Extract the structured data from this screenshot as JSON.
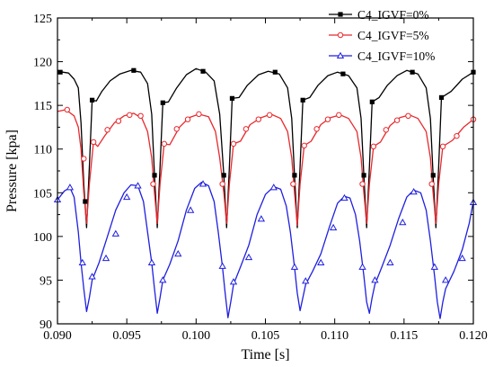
{
  "chart_data": {
    "type": "line",
    "xlabel": "Time [s]",
    "ylabel": "Pressure [kpa]",
    "xlim": [
      0.09,
      0.12
    ],
    "ylim": [
      90,
      125
    ],
    "x_ticks": [
      "0.090",
      "0.095",
      "0.100",
      "0.105",
      "0.110",
      "0.115",
      "0.120"
    ],
    "y_ticks": [
      "90",
      "95",
      "100",
      "105",
      "110",
      "115",
      "120",
      "125"
    ],
    "grid": false,
    "legend_position": "top-right",
    "series": [
      {
        "name": "C4_IGVF=0%",
        "color": "#000000",
        "marker": "square-filled",
        "points": [
          [
            0.09,
            118.9
          ],
          [
            0.0908,
            118.7
          ],
          [
            0.0912,
            118.0
          ],
          [
            0.0915,
            117.0
          ],
          [
            0.0917,
            113.0
          ],
          [
            0.0919,
            106.0
          ],
          [
            0.0921,
            101.0
          ],
          [
            0.0923,
            108.0
          ],
          [
            0.0925,
            115.6
          ],
          [
            0.0928,
            115.5
          ],
          [
            0.0932,
            116.6
          ],
          [
            0.0938,
            117.8
          ],
          [
            0.0945,
            118.6
          ],
          [
            0.0953,
            119.0
          ],
          [
            0.096,
            118.8
          ],
          [
            0.0965,
            117.5
          ],
          [
            0.0968,
            114.0
          ],
          [
            0.097,
            107.0
          ],
          [
            0.0972,
            101.0
          ],
          [
            0.0974,
            108.0
          ],
          [
            0.0976,
            115.3
          ],
          [
            0.098,
            115.4
          ],
          [
            0.0986,
            117.0
          ],
          [
            0.0993,
            118.5
          ],
          [
            0.1,
            119.2
          ],
          [
            0.1007,
            118.8
          ],
          [
            0.1013,
            117.8
          ],
          [
            0.1017,
            114.0
          ],
          [
            0.102,
            107.0
          ],
          [
            0.1022,
            101.0
          ],
          [
            0.1024,
            108.0
          ],
          [
            0.1026,
            115.8
          ],
          [
            0.1031,
            115.9
          ],
          [
            0.1037,
            117.3
          ],
          [
            0.1045,
            118.5
          ],
          [
            0.1052,
            118.9
          ],
          [
            0.106,
            118.6
          ],
          [
            0.1066,
            117.0
          ],
          [
            0.1069,
            113.5
          ],
          [
            0.1071,
            107.0
          ],
          [
            0.1073,
            101.0
          ],
          [
            0.1075,
            108.0
          ],
          [
            0.1077,
            115.6
          ],
          [
            0.1082,
            115.9
          ],
          [
            0.1088,
            117.3
          ],
          [
            0.1095,
            118.4
          ],
          [
            0.1102,
            118.8
          ],
          [
            0.111,
            118.4
          ],
          [
            0.1116,
            117.0
          ],
          [
            0.1119,
            113.5
          ],
          [
            0.1121,
            107.0
          ],
          [
            0.1123,
            101.0
          ],
          [
            0.1125,
            108.0
          ],
          [
            0.1127,
            115.4
          ],
          [
            0.1132,
            115.9
          ],
          [
            0.1138,
            117.3
          ],
          [
            0.1145,
            118.4
          ],
          [
            0.1152,
            119.0
          ],
          [
            0.116,
            118.6
          ],
          [
            0.1166,
            117.0
          ],
          [
            0.1169,
            113.5
          ],
          [
            0.1171,
            107.0
          ],
          [
            0.1173,
            101.0
          ],
          [
            0.1175,
            108.0
          ],
          [
            0.1177,
            115.9
          ],
          [
            0.1184,
            116.6
          ],
          [
            0.1192,
            118.0
          ],
          [
            0.12,
            118.8
          ]
        ],
        "marker_points": [
          [
            0.0902,
            118.8
          ],
          [
            0.092,
            104.0
          ],
          [
            0.0925,
            115.6
          ],
          [
            0.0955,
            119.0
          ],
          [
            0.097,
            107.0
          ],
          [
            0.0976,
            115.3
          ],
          [
            0.1005,
            118.9
          ],
          [
            0.102,
            107.0
          ],
          [
            0.1026,
            115.8
          ],
          [
            0.1057,
            118.8
          ],
          [
            0.1071,
            107.0
          ],
          [
            0.1077,
            115.6
          ],
          [
            0.1106,
            118.6
          ],
          [
            0.1121,
            107.0
          ],
          [
            0.1127,
            115.4
          ],
          [
            0.1156,
            118.8
          ],
          [
            0.1171,
            107.0
          ],
          [
            0.1177,
            115.9
          ],
          [
            0.12,
            118.8
          ]
        ]
      },
      {
        "name": "C4_IGVF=5%",
        "color": "#e8282d",
        "marker": "circle-open",
        "points": [
          [
            0.09,
            114.3
          ],
          [
            0.0906,
            114.5
          ],
          [
            0.0912,
            113.8
          ],
          [
            0.0915,
            112.5
          ],
          [
            0.0917,
            110.0
          ],
          [
            0.0919,
            105.0
          ],
          [
            0.0921,
            101.5
          ],
          [
            0.0923,
            106.0
          ],
          [
            0.0926,
            110.8
          ],
          [
            0.0929,
            110.3
          ],
          [
            0.0934,
            111.5
          ],
          [
            0.0941,
            113.0
          ],
          [
            0.0948,
            113.8
          ],
          [
            0.0955,
            114.1
          ],
          [
            0.0961,
            113.5
          ],
          [
            0.0965,
            112.0
          ],
          [
            0.0968,
            109.0
          ],
          [
            0.097,
            105.0
          ],
          [
            0.0972,
            101.5
          ],
          [
            0.0974,
            106.0
          ],
          [
            0.0977,
            110.6
          ],
          [
            0.0981,
            110.5
          ],
          [
            0.0988,
            112.5
          ],
          [
            0.0995,
            113.6
          ],
          [
            0.1002,
            114.0
          ],
          [
            0.1009,
            113.7
          ],
          [
            0.1014,
            112.0
          ],
          [
            0.1017,
            109.0
          ],
          [
            0.102,
            105.0
          ],
          [
            0.1022,
            101.5
          ],
          [
            0.1024,
            106.0
          ],
          [
            0.1027,
            110.6
          ],
          [
            0.1032,
            110.9
          ],
          [
            0.1039,
            112.8
          ],
          [
            0.1047,
            113.6
          ],
          [
            0.1054,
            114.0
          ],
          [
            0.1061,
            113.5
          ],
          [
            0.1066,
            112.0
          ],
          [
            0.1069,
            109.0
          ],
          [
            0.1071,
            105.0
          ],
          [
            0.1073,
            101.3
          ],
          [
            0.1075,
            106.0
          ],
          [
            0.1078,
            110.4
          ],
          [
            0.1083,
            110.9
          ],
          [
            0.109,
            112.8
          ],
          [
            0.1097,
            113.6
          ],
          [
            0.1104,
            113.9
          ],
          [
            0.111,
            113.5
          ],
          [
            0.1116,
            112.0
          ],
          [
            0.1119,
            109.0
          ],
          [
            0.1121,
            105.0
          ],
          [
            0.1123,
            101.5
          ],
          [
            0.1125,
            106.0
          ],
          [
            0.1128,
            110.3
          ],
          [
            0.1133,
            110.8
          ],
          [
            0.114,
            112.7
          ],
          [
            0.1147,
            113.6
          ],
          [
            0.1154,
            113.9
          ],
          [
            0.116,
            113.5
          ],
          [
            0.1166,
            112.0
          ],
          [
            0.1169,
            109.0
          ],
          [
            0.1171,
            105.0
          ],
          [
            0.1173,
            101.5
          ],
          [
            0.1175,
            106.0
          ],
          [
            0.1178,
            110.3
          ],
          [
            0.1185,
            111.0
          ],
          [
            0.1193,
            112.5
          ],
          [
            0.12,
            113.4
          ]
        ],
        "marker_points": [
          [
            0.0907,
            114.5
          ],
          [
            0.0919,
            108.9
          ],
          [
            0.0926,
            110.8
          ],
          [
            0.0936,
            112.2
          ],
          [
            0.0944,
            113.2
          ],
          [
            0.0952,
            113.9
          ],
          [
            0.096,
            113.8
          ],
          [
            0.0969,
            106.0
          ],
          [
            0.0977,
            110.6
          ],
          [
            0.0986,
            112.3
          ],
          [
            0.0994,
            113.4
          ],
          [
            0.1002,
            114.0
          ],
          [
            0.1019,
            106.0
          ],
          [
            0.1027,
            110.6
          ],
          [
            0.1036,
            112.3
          ],
          [
            0.1045,
            113.4
          ],
          [
            0.1053,
            113.9
          ],
          [
            0.107,
            106.0
          ],
          [
            0.1078,
            110.4
          ],
          [
            0.1087,
            112.3
          ],
          [
            0.1095,
            113.4
          ],
          [
            0.1103,
            113.9
          ],
          [
            0.112,
            106.0
          ],
          [
            0.1128,
            110.3
          ],
          [
            0.1137,
            112.2
          ],
          [
            0.1145,
            113.3
          ],
          [
            0.1153,
            113.8
          ],
          [
            0.117,
            106.0
          ],
          [
            0.1178,
            110.3
          ],
          [
            0.1188,
            111.5
          ],
          [
            0.12,
            113.4
          ]
        ]
      },
      {
        "name": "C4_IGVF=10%",
        "color": "#1f1fe0",
        "marker": "triangle-open",
        "points": [
          [
            0.09,
            104.2
          ],
          [
            0.0905,
            105.2
          ],
          [
            0.0909,
            105.6
          ],
          [
            0.0912,
            104.5
          ],
          [
            0.0915,
            100.5
          ],
          [
            0.0917,
            97.0
          ],
          [
            0.0919,
            94.0
          ],
          [
            0.0921,
            91.4
          ],
          [
            0.0923,
            93.0
          ],
          [
            0.0925,
            95.0
          ],
          [
            0.093,
            97.0
          ],
          [
            0.0936,
            100.0
          ],
          [
            0.0942,
            103.0
          ],
          [
            0.0948,
            105.0
          ],
          [
            0.0953,
            105.9
          ],
          [
            0.0958,
            105.8
          ],
          [
            0.0962,
            104.0
          ],
          [
            0.0965,
            100.5
          ],
          [
            0.0968,
            97.0
          ],
          [
            0.097,
            94.0
          ],
          [
            0.0972,
            91.2
          ],
          [
            0.0974,
            93.0
          ],
          [
            0.0976,
            95.0
          ],
          [
            0.0981,
            96.8
          ],
          [
            0.0987,
            99.5
          ],
          [
            0.0993,
            103.0
          ],
          [
            0.0999,
            105.5
          ],
          [
            0.1004,
            106.2
          ],
          [
            0.1009,
            105.8
          ],
          [
            0.1013,
            104.0
          ],
          [
            0.1016,
            100.5
          ],
          [
            0.1019,
            96.5
          ],
          [
            0.1021,
            93.5
          ],
          [
            0.1023,
            90.7
          ],
          [
            0.1025,
            92.5
          ],
          [
            0.1027,
            94.5
          ],
          [
            0.1032,
            96.5
          ],
          [
            0.1038,
            99.0
          ],
          [
            0.1044,
            102.5
          ],
          [
            0.105,
            104.8
          ],
          [
            0.1056,
            105.7
          ],
          [
            0.1061,
            105.4
          ],
          [
            0.1065,
            103.5
          ],
          [
            0.1068,
            100.5
          ],
          [
            0.1071,
            96.5
          ],
          [
            0.1073,
            93.5
          ],
          [
            0.1075,
            91.5
          ],
          [
            0.1077,
            93.0
          ],
          [
            0.1079,
            94.5
          ],
          [
            0.1084,
            96.0
          ],
          [
            0.109,
            98.0
          ],
          [
            0.1096,
            101.0
          ],
          [
            0.1102,
            103.8
          ],
          [
            0.1107,
            104.6
          ],
          [
            0.1111,
            104.4
          ],
          [
            0.1115,
            102.5
          ],
          [
            0.1118,
            99.5
          ],
          [
            0.1121,
            95.5
          ],
          [
            0.1123,
            92.5
          ],
          [
            0.1125,
            91.2
          ],
          [
            0.1127,
            93.0
          ],
          [
            0.1129,
            94.5
          ],
          [
            0.1134,
            96.5
          ],
          [
            0.114,
            99.0
          ],
          [
            0.1146,
            102.0
          ],
          [
            0.1152,
            104.5
          ],
          [
            0.1157,
            105.3
          ],
          [
            0.1162,
            105.0
          ],
          [
            0.1166,
            103.0
          ],
          [
            0.1169,
            99.5
          ],
          [
            0.1172,
            95.5
          ],
          [
            0.1174,
            92.5
          ],
          [
            0.1176,
            90.6
          ],
          [
            0.1178,
            92.5
          ],
          [
            0.118,
            94.0
          ],
          [
            0.1186,
            96.0
          ],
          [
            0.1192,
            98.5
          ],
          [
            0.1197,
            101.5
          ],
          [
            0.12,
            104.0
          ]
        ],
        "marker_points": [
          [
            0.09,
            104.2
          ],
          [
            0.0909,
            105.6
          ],
          [
            0.0918,
            97.0
          ],
          [
            0.0925,
            95.4
          ],
          [
            0.0935,
            97.5
          ],
          [
            0.0942,
            100.3
          ],
          [
            0.095,
            104.5
          ],
          [
            0.0958,
            105.8
          ],
          [
            0.0968,
            97.0
          ],
          [
            0.0976,
            95.0
          ],
          [
            0.0987,
            98.0
          ],
          [
            0.0996,
            103.0
          ],
          [
            0.1005,
            106.0
          ],
          [
            0.1019,
            96.6
          ],
          [
            0.1027,
            94.8
          ],
          [
            0.1038,
            97.6
          ],
          [
            0.1047,
            102.0
          ],
          [
            0.1056,
            105.6
          ],
          [
            0.1071,
            96.5
          ],
          [
            0.1079,
            94.9
          ],
          [
            0.109,
            97.0
          ],
          [
            0.1099,
            101.0
          ],
          [
            0.1107,
            104.4
          ],
          [
            0.112,
            96.5
          ],
          [
            0.1129,
            95.0
          ],
          [
            0.114,
            97.0
          ],
          [
            0.1149,
            101.6
          ],
          [
            0.1157,
            105.1
          ],
          [
            0.1172,
            96.5
          ],
          [
            0.118,
            95.0
          ],
          [
            0.1192,
            97.5
          ],
          [
            0.12,
            103.9
          ]
        ]
      }
    ]
  }
}
